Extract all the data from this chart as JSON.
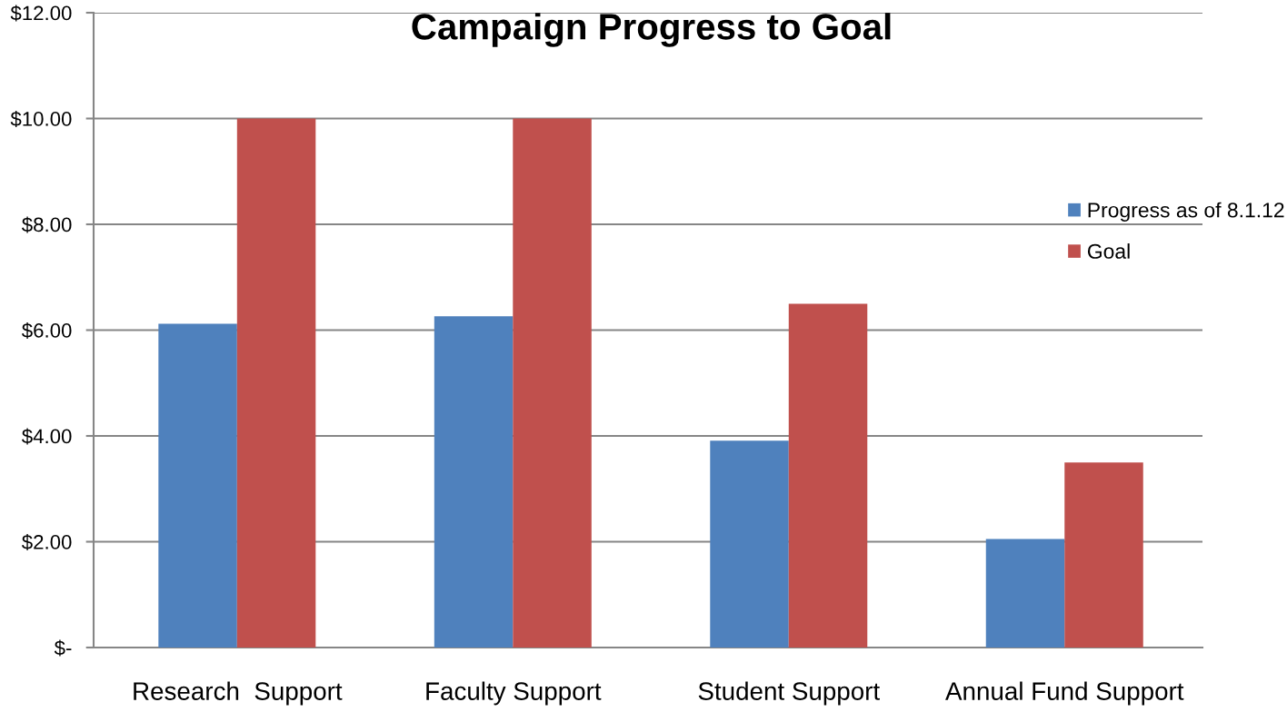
{
  "chart_data": {
    "type": "bar",
    "title": "Campaign Progress to Goal",
    "categories": [
      "Research  Support",
      "Faculty Support",
      "Student Support",
      "Annual Fund Support"
    ],
    "series": [
      {
        "name": "Progress as of 8.1.12",
        "color": "#4f81bd",
        "values": [
          6.12,
          6.26,
          3.91,
          2.05
        ]
      },
      {
        "name": "Goal",
        "color": "#c0504d",
        "values": [
          10,
          10,
          6.5,
          3.5
        ]
      }
    ],
    "ylim": [
      0,
      12
    ],
    "yticks": [
      {
        "value": 0,
        "label": "$-"
      },
      {
        "value": 2,
        "label": "$2.00"
      },
      {
        "value": 4,
        "label": "$4.00"
      },
      {
        "value": 6,
        "label": "$6.00"
      },
      {
        "value": 8,
        "label": "$8.00"
      },
      {
        "value": 10,
        "label": "$10.00"
      },
      {
        "value": 12,
        "label": "$12.00"
      }
    ],
    "grid": "y",
    "legend": "right"
  }
}
